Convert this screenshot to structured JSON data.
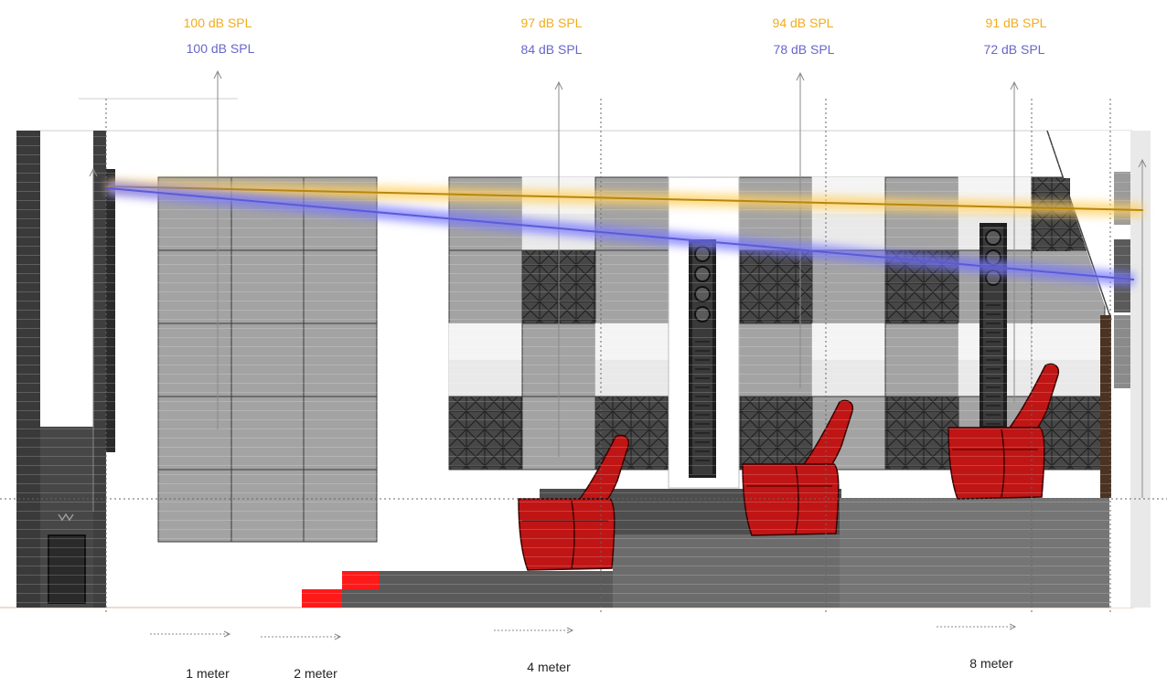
{
  "colors": {
    "direct_line": "#d9a21b",
    "reflected_line": "#5b5bd6",
    "label_a": "#f2ac1c",
    "label_b": "#6767c9",
    "panel_light": "#a3a3a3",
    "panel_dark": "#4a4a4a",
    "seat_red": "#c01515",
    "stair_red": "#ff1a1a",
    "wall_dark": "#3a3a3a"
  },
  "positions": [
    {
      "spl_a": "100 dB SPL",
      "spl_b": "100  dB SPL"
    },
    {
      "spl_a": "97 dB SPL",
      "spl_b": "84 dB SPL"
    },
    {
      "spl_a": "94 dB SPL",
      "spl_b": "78 dB SPL"
    },
    {
      "spl_a": "91 dB SPL",
      "spl_b": "72 dB SPL"
    }
  ],
  "distances": [
    "1 meter",
    "2 meter",
    "4 meter",
    "8 meter"
  ],
  "icons": [
    "speaker-column-icon",
    "theater-seat-icon",
    "stair-icon"
  ]
}
